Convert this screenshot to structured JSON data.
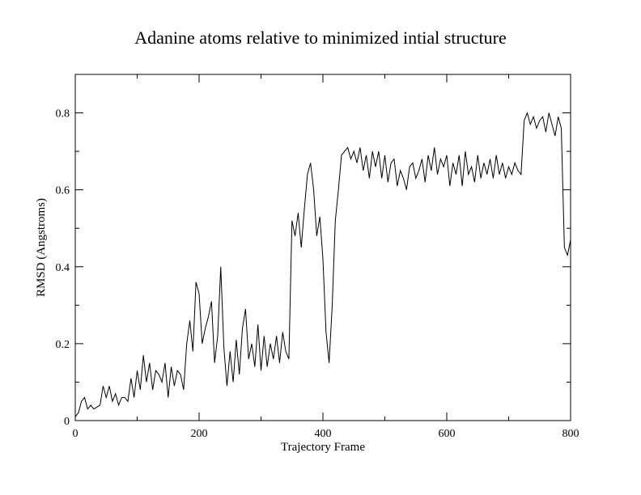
{
  "chart_data": {
    "type": "line",
    "title": "Adanine atoms relative to minimized intial structure",
    "xlabel": "Trajectory Frame",
    "ylabel": "RMSD (Angstroms)",
    "xlim": [
      0,
      800
    ],
    "ylim": [
      0,
      0.9
    ],
    "xticks": [
      0,
      200,
      400,
      600,
      800
    ],
    "yticks": [
      0,
      0.2,
      0.4,
      0.6,
      0.8
    ],
    "x_tick_labels": [
      "0",
      "200",
      "400",
      "600",
      "800"
    ],
    "y_tick_labels": [
      "0",
      "0.2",
      "0.4",
      "0.6",
      "0.8"
    ],
    "grid": false,
    "legend": "none",
    "line_color": "#000000",
    "series": [
      {
        "x": [
          0,
          5,
          10,
          15,
          20,
          25,
          30,
          35,
          40,
          45,
          50,
          55,
          60,
          65,
          70,
          75,
          80,
          85,
          90,
          95,
          100,
          105,
          110,
          115,
          120,
          125,
          130,
          135,
          140,
          145,
          150,
          155,
          160,
          165,
          170,
          175,
          180,
          185,
          190,
          195,
          200,
          205,
          210,
          215,
          220,
          225,
          230,
          235,
          240,
          245,
          250,
          255,
          260,
          265,
          270,
          275,
          280,
          285,
          290,
          295,
          300,
          305,
          310,
          315,
          320,
          325,
          330,
          335,
          340,
          345,
          350,
          355,
          360,
          365,
          370,
          375,
          380,
          385,
          390,
          395,
          400,
          405,
          410,
          415,
          420,
          425,
          430,
          435,
          440,
          445,
          450,
          455,
          460,
          465,
          470,
          475,
          480,
          485,
          490,
          495,
          500,
          505,
          510,
          515,
          520,
          525,
          530,
          535,
          540,
          545,
          550,
          555,
          560,
          565,
          570,
          575,
          580,
          585,
          590,
          595,
          600,
          605,
          610,
          615,
          620,
          625,
          630,
          635,
          640,
          645,
          650,
          655,
          660,
          665,
          670,
          675,
          680,
          685,
          690,
          695,
          700,
          705,
          710,
          715,
          720,
          725,
          730,
          735,
          740,
          745,
          750,
          755,
          760,
          765,
          770,
          775,
          780,
          785,
          790,
          795,
          800
        ],
        "y": [
          0.01,
          0.02,
          0.05,
          0.06,
          0.03,
          0.04,
          0.03,
          0.035,
          0.04,
          0.09,
          0.06,
          0.09,
          0.05,
          0.07,
          0.04,
          0.06,
          0.06,
          0.05,
          0.11,
          0.06,
          0.13,
          0.08,
          0.17,
          0.1,
          0.15,
          0.08,
          0.13,
          0.12,
          0.1,
          0.15,
          0.06,
          0.14,
          0.09,
          0.13,
          0.12,
          0.08,
          0.2,
          0.26,
          0.18,
          0.36,
          0.33,
          0.2,
          0.24,
          0.27,
          0.31,
          0.15,
          0.22,
          0.4,
          0.19,
          0.09,
          0.18,
          0.1,
          0.21,
          0.12,
          0.24,
          0.29,
          0.16,
          0.2,
          0.14,
          0.25,
          0.13,
          0.22,
          0.14,
          0.2,
          0.16,
          0.22,
          0.15,
          0.23,
          0.18,
          0.16,
          0.52,
          0.48,
          0.54,
          0.45,
          0.55,
          0.64,
          0.67,
          0.6,
          0.48,
          0.53,
          0.42,
          0.23,
          0.15,
          0.3,
          0.52,
          0.6,
          0.69,
          0.7,
          0.71,
          0.68,
          0.7,
          0.67,
          0.71,
          0.65,
          0.69,
          0.63,
          0.7,
          0.66,
          0.7,
          0.63,
          0.69,
          0.62,
          0.67,
          0.68,
          0.61,
          0.65,
          0.63,
          0.6,
          0.66,
          0.67,
          0.63,
          0.65,
          0.68,
          0.62,
          0.69,
          0.65,
          0.71,
          0.64,
          0.68,
          0.66,
          0.69,
          0.61,
          0.67,
          0.64,
          0.69,
          0.61,
          0.7,
          0.64,
          0.66,
          0.62,
          0.69,
          0.63,
          0.67,
          0.64,
          0.68,
          0.63,
          0.69,
          0.64,
          0.67,
          0.63,
          0.66,
          0.64,
          0.67,
          0.65,
          0.64,
          0.78,
          0.8,
          0.77,
          0.79,
          0.76,
          0.78,
          0.79,
          0.75,
          0.8,
          0.77,
          0.74,
          0.79,
          0.76,
          0.45,
          0.43,
          0.47
        ]
      }
    ]
  }
}
